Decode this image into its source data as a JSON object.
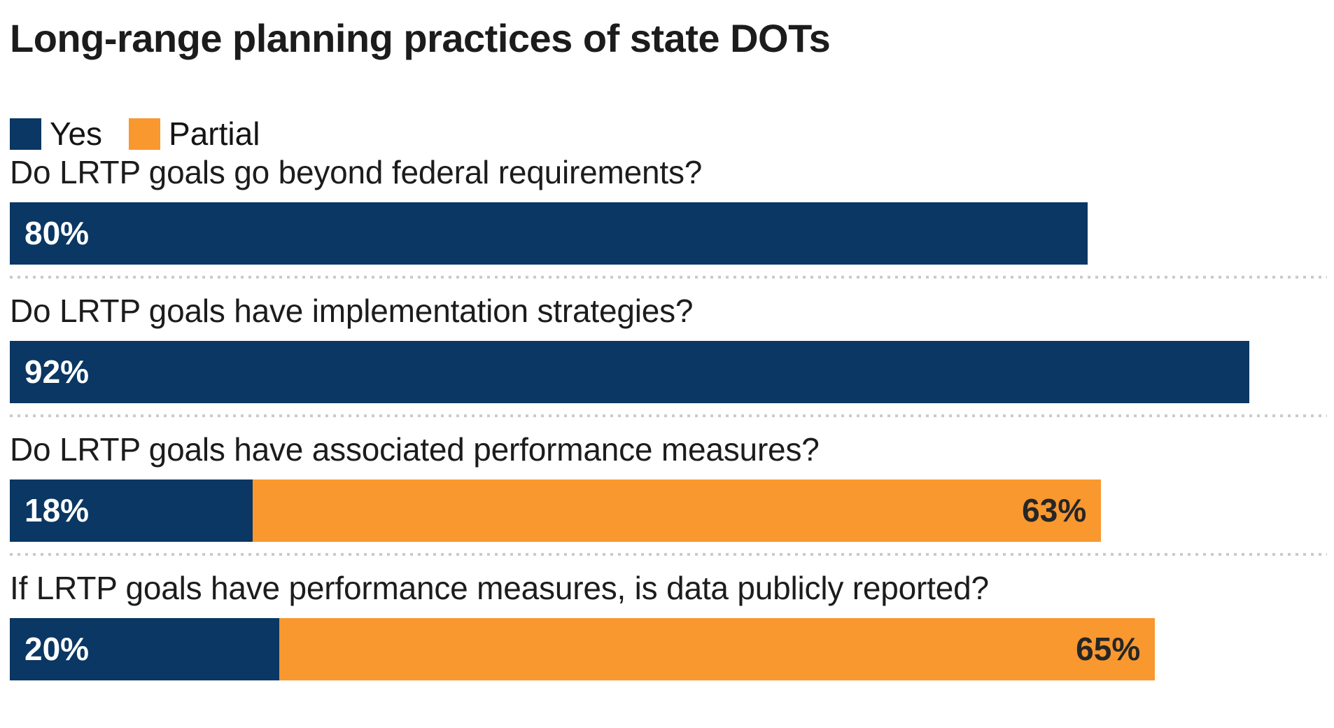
{
  "title": "Long-range planning practices of state DOTs",
  "colors": {
    "yes": "#0a3763",
    "partial": "#f8982f",
    "text": "#1c1c1c",
    "value_on_yes": "#ffffff",
    "value_on_partial": "#262626",
    "divider": "#cbcbcb"
  },
  "legend": {
    "yes_label": "Yes",
    "partial_label": "Partial"
  },
  "chart_data": {
    "type": "bar",
    "orientation": "horizontal",
    "stacked": true,
    "title": "Long-range planning practices of state DOTs",
    "unit": "percent",
    "xlim": [
      0,
      100
    ],
    "grid": false,
    "legend_position": "top-left",
    "series_names": [
      "Yes",
      "Partial"
    ],
    "rows": [
      {
        "question": "Do LRTP goals go beyond federal requirements?",
        "yes": 80,
        "yes_label": "80%",
        "partial": 0,
        "partial_label": ""
      },
      {
        "question": "Do LRTP goals have implementation strategies?",
        "yes": 92,
        "yes_label": "92%",
        "partial": 0,
        "partial_label": ""
      },
      {
        "question": "Do LRTP goals have associated performance measures?",
        "yes": 18,
        "yes_label": "18%",
        "partial": 63,
        "partial_label": "63%"
      },
      {
        "question": "If LRTP goals have performance measures, is data publicly reported?",
        "yes": 20,
        "yes_label": "20%",
        "partial": 65,
        "partial_label": "65%"
      }
    ]
  }
}
